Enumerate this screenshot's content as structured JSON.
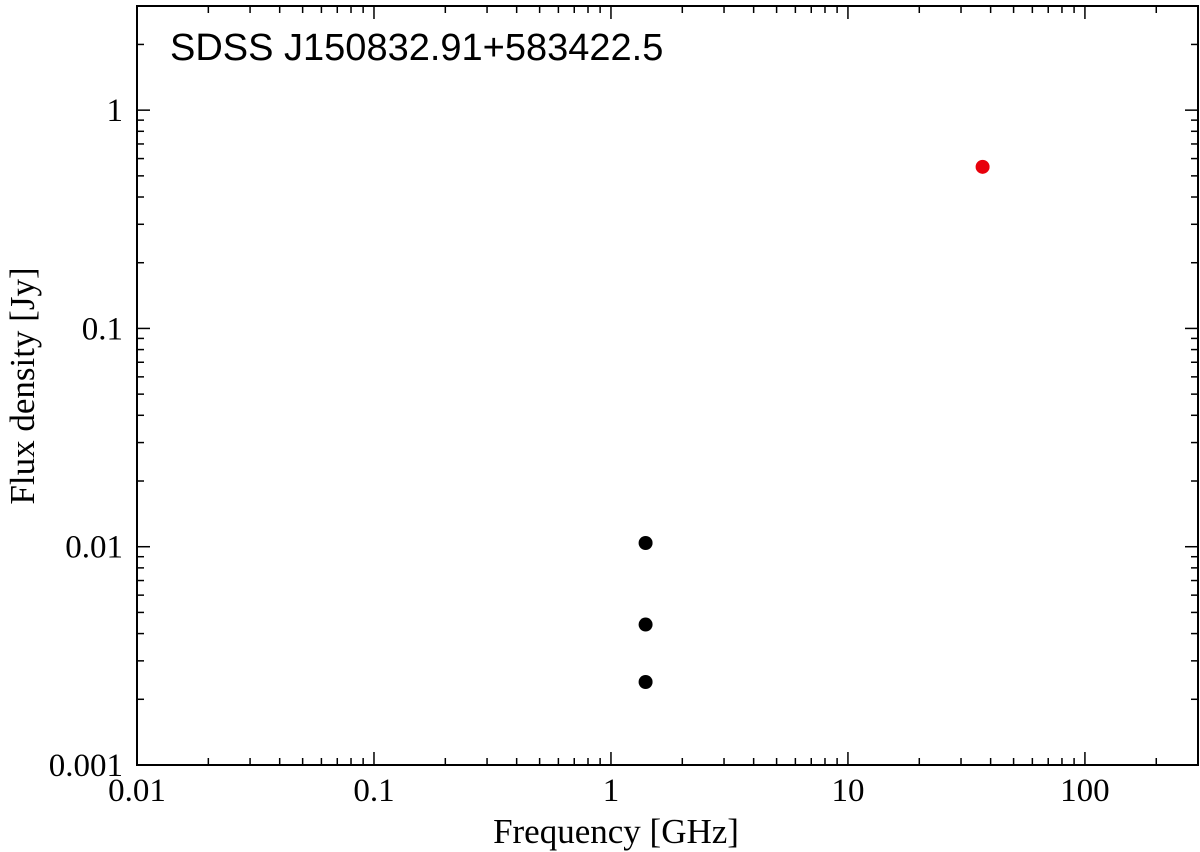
{
  "chart_data": {
    "type": "scatter",
    "title": "SDSS J150832.91+583422.5",
    "xlabel": "Frequency [GHz]",
    "ylabel": "Flux density [Jy]",
    "xscale": "log",
    "yscale": "log",
    "xlim": [
      0.01,
      300
    ],
    "ylim": [
      0.001,
      3
    ],
    "xticks": [
      {
        "value": 0.01,
        "label": "0.01"
      },
      {
        "value": 0.1,
        "label": "0.1"
      },
      {
        "value": 1,
        "label": "1"
      },
      {
        "value": 10,
        "label": "10"
      },
      {
        "value": 100,
        "label": "100"
      }
    ],
    "yticks": [
      {
        "value": 0.001,
        "label": "0.001"
      },
      {
        "value": 0.01,
        "label": "0.01"
      },
      {
        "value": 0.1,
        "label": "0.1"
      },
      {
        "value": 1,
        "label": "1"
      }
    ],
    "series": [
      {
        "color": "#000000",
        "points": [
          {
            "x": 1.4,
            "y": 0.0104
          },
          {
            "x": 1.4,
            "y": 0.0044
          },
          {
            "x": 1.4,
            "y": 0.0024
          }
        ]
      },
      {
        "color": "#e8000b",
        "points": [
          {
            "x": 37,
            "y": 0.55
          }
        ]
      }
    ],
    "grid": false,
    "legend": "none"
  }
}
